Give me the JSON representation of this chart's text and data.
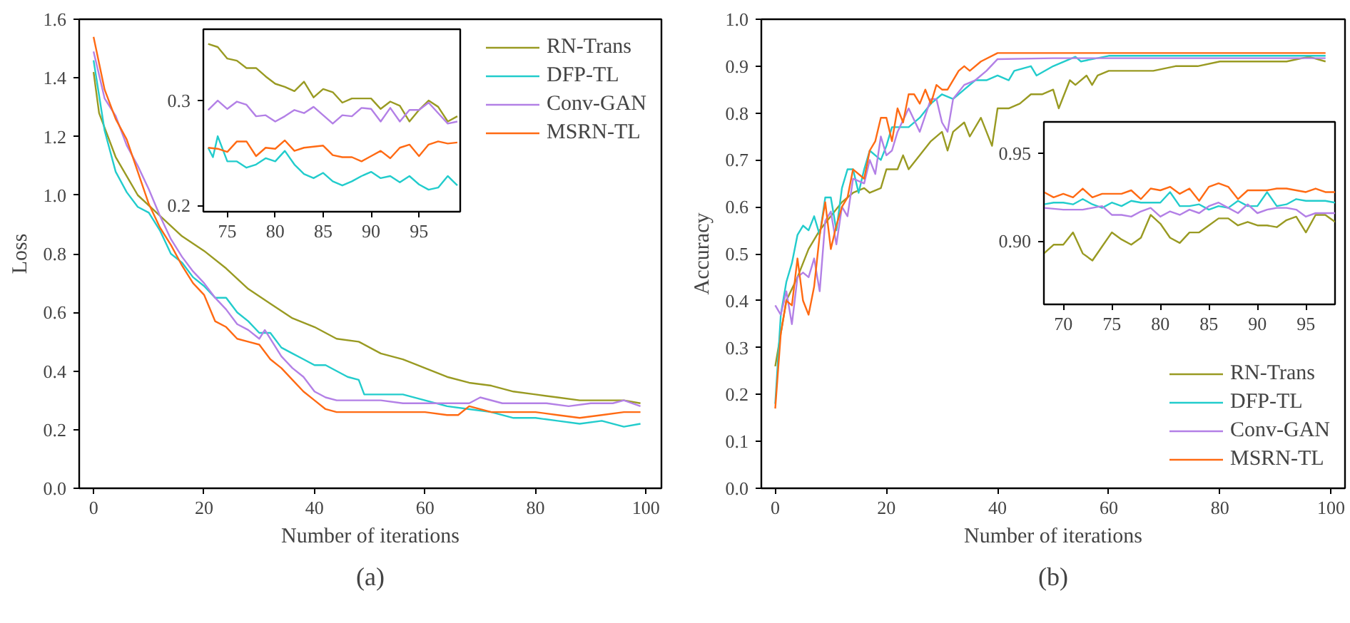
{
  "chart_data": [
    {
      "type": "line",
      "xlabel": "Number of iterations",
      "ylabel": "Loss",
      "xlim": [
        -2.6,
        102.8
      ],
      "ylim": [
        0,
        1.6
      ],
      "xticks": [
        0,
        20,
        40,
        60,
        80,
        100
      ],
      "yticks": [
        {
          "value": 0,
          "label": "0.0"
        },
        0.2,
        0.4,
        0.6,
        0.8,
        {
          "value": 1,
          "label": "1.0"
        },
        1.2,
        1.4,
        1.6
      ],
      "legend": "top right",
      "grid": false,
      "line_style": "solid",
      "annotations": [
        "(a)"
      ],
      "series": [
        {
          "name": "RN-Trans",
          "color": "#999a22",
          "x": [
            0,
            1,
            4,
            8,
            12,
            16,
            20,
            24,
            28,
            32,
            36,
            40,
            44,
            48,
            52,
            56,
            60,
            64,
            68,
            72,
            76,
            80,
            84,
            88,
            92,
            96,
            99
          ],
          "values": [
            1.42,
            1.28,
            1.13,
            1.0,
            0.93,
            0.86,
            0.81,
            0.75,
            0.68,
            0.63,
            0.58,
            0.55,
            0.51,
            0.5,
            0.46,
            0.44,
            0.41,
            0.38,
            0.36,
            0.35,
            0.33,
            0.32,
            0.31,
            0.3,
            0.3,
            0.3,
            0.29
          ]
        },
        {
          "name": "DFP-TL",
          "color": "#22cccc",
          "x": [
            0,
            2,
            4,
            6,
            8,
            10,
            12,
            14,
            16,
            18,
            20,
            22,
            24,
            26,
            28,
            30,
            32,
            34,
            36,
            38,
            40,
            42,
            44,
            46,
            48,
            49,
            52,
            56,
            60,
            64,
            68,
            72,
            76,
            80,
            84,
            88,
            92,
            96,
            99
          ],
          "values": [
            1.46,
            1.22,
            1.08,
            1.01,
            0.96,
            0.94,
            0.88,
            0.8,
            0.77,
            0.72,
            0.69,
            0.65,
            0.65,
            0.6,
            0.57,
            0.53,
            0.53,
            0.48,
            0.46,
            0.44,
            0.42,
            0.42,
            0.4,
            0.38,
            0.37,
            0.32,
            0.32,
            0.32,
            0.3,
            0.28,
            0.27,
            0.26,
            0.24,
            0.24,
            0.23,
            0.22,
            0.23,
            0.21,
            0.22
          ]
        },
        {
          "name": "Conv-GAN",
          "color": "#b380e6",
          "x": [
            0,
            2,
            4,
            6,
            8,
            10,
            12,
            14,
            16,
            18,
            20,
            22,
            24,
            26,
            28,
            30,
            31,
            34,
            36,
            38,
            40,
            42,
            44,
            48,
            52,
            56,
            60,
            64,
            68,
            70,
            74,
            78,
            82,
            86,
            90,
            94,
            96,
            99
          ],
          "values": [
            1.49,
            1.33,
            1.27,
            1.17,
            1.1,
            1.02,
            0.93,
            0.85,
            0.79,
            0.74,
            0.7,
            0.65,
            0.61,
            0.56,
            0.54,
            0.51,
            0.54,
            0.45,
            0.41,
            0.38,
            0.33,
            0.31,
            0.3,
            0.3,
            0.3,
            0.29,
            0.29,
            0.29,
            0.29,
            0.31,
            0.29,
            0.29,
            0.29,
            0.28,
            0.29,
            0.29,
            0.3,
            0.28
          ]
        },
        {
          "name": "MSRN-TL",
          "color": "#ff6a13",
          "x": [
            0,
            2,
            4,
            6,
            8,
            10,
            12,
            14,
            16,
            18,
            20,
            22,
            24,
            26,
            28,
            30,
            32,
            34,
            36,
            38,
            40,
            42,
            44,
            48,
            52,
            56,
            60,
            64,
            66,
            68,
            72,
            76,
            80,
            84,
            88,
            92,
            96,
            99
          ],
          "values": [
            1.54,
            1.36,
            1.26,
            1.19,
            1.08,
            0.97,
            0.89,
            0.83,
            0.76,
            0.7,
            0.66,
            0.57,
            0.55,
            0.51,
            0.5,
            0.49,
            0.44,
            0.41,
            0.37,
            0.33,
            0.3,
            0.27,
            0.26,
            0.26,
            0.26,
            0.26,
            0.26,
            0.25,
            0.25,
            0.28,
            0.26,
            0.26,
            0.26,
            0.25,
            0.24,
            0.25,
            0.26,
            0.26
          ]
        }
      ]
    },
    {
      "type": "line",
      "xlim": [
        72.5,
        99.3
      ],
      "ylim": [
        0.194,
        0.368
      ],
      "xticks": [
        75,
        80,
        85,
        90,
        95
      ],
      "yticks": [
        0.2,
        0.3
      ],
      "grid": false,
      "line_style": "solid",
      "series": [
        {
          "color": "#999a22",
          "x": [
            73,
            74,
            75,
            76,
            77,
            78,
            79,
            80,
            81,
            82,
            83,
            84,
            85,
            86,
            87,
            88,
            89,
            90,
            91,
            92,
            93,
            94,
            95,
            96,
            97,
            98,
            99
          ],
          "values": [
            0.354,
            0.351,
            0.34,
            0.338,
            0.331,
            0.331,
            0.323,
            0.316,
            0.313,
            0.309,
            0.318,
            0.303,
            0.311,
            0.308,
            0.298,
            0.302,
            0.302,
            0.302,
            0.292,
            0.299,
            0.295,
            0.28,
            0.291,
            0.3,
            0.294,
            0.28,
            0.285
          ]
        },
        {
          "color": "#22cccc",
          "x": [
            73,
            73.5,
            74,
            75,
            76,
            77,
            78,
            79,
            80,
            81,
            82,
            83,
            84,
            85,
            86,
            87,
            88,
            89,
            90,
            91,
            92,
            93,
            94,
            95,
            96,
            97,
            98,
            99
          ],
          "values": [
            0.255,
            0.246,
            0.266,
            0.242,
            0.242,
            0.236,
            0.239,
            0.245,
            0.242,
            0.252,
            0.239,
            0.23,
            0.226,
            0.231,
            0.223,
            0.219,
            0.223,
            0.228,
            0.232,
            0.226,
            0.228,
            0.222,
            0.228,
            0.22,
            0.215,
            0.217,
            0.228,
            0.219
          ]
        },
        {
          "color": "#b380e6",
          "x": [
            73,
            74,
            75,
            76,
            77,
            78,
            79,
            80,
            81,
            82,
            83,
            84,
            85,
            86,
            87,
            88,
            89,
            90,
            91,
            92,
            93,
            94,
            95,
            96,
            97,
            98,
            99
          ],
          "values": [
            0.291,
            0.3,
            0.292,
            0.299,
            0.296,
            0.285,
            0.286,
            0.28,
            0.285,
            0.291,
            0.288,
            0.294,
            0.286,
            0.278,
            0.286,
            0.285,
            0.293,
            0.292,
            0.28,
            0.293,
            0.28,
            0.291,
            0.291,
            0.298,
            0.288,
            0.278,
            0.28
          ]
        },
        {
          "color": "#ff6a13",
          "x": [
            73,
            74,
            75,
            76,
            77,
            78,
            79,
            80,
            81,
            82,
            83,
            84,
            85,
            86,
            87,
            88,
            89,
            90,
            91,
            92,
            93,
            94,
            95,
            96,
            97,
            98,
            99
          ],
          "values": [
            0.255,
            0.254,
            0.251,
            0.261,
            0.261,
            0.247,
            0.255,
            0.254,
            0.262,
            0.252,
            0.255,
            0.256,
            0.257,
            0.248,
            0.246,
            0.246,
            0.242,
            0.247,
            0.252,
            0.245,
            0.255,
            0.258,
            0.247,
            0.258,
            0.261,
            0.259,
            0.26
          ]
        }
      ]
    },
    {
      "type": "line",
      "xlabel": "Number of iterations",
      "ylabel": "Accuracy",
      "xlim": [
        -2.5,
        102.5
      ],
      "ylim": [
        0,
        1
      ],
      "xticks": [
        0,
        20,
        40,
        60,
        80,
        100
      ],
      "yticks": [
        {
          "value": 0,
          "label": "0.0"
        },
        0.1,
        0.2,
        0.3,
        0.4,
        0.5,
        0.6,
        0.7,
        0.8,
        0.9,
        {
          "value": 1,
          "label": "1.0"
        }
      ],
      "legend": "bottom right",
      "grid": false,
      "line_style": "solid",
      "annotations": [
        "(b)"
      ],
      "series": [
        {
          "name": "RN-Trans",
          "color": "#999a22",
          "x": [
            0,
            2,
            4,
            6,
            8,
            10,
            12,
            14,
            16,
            17,
            19,
            20,
            22,
            23,
            24,
            26,
            28,
            30,
            31,
            32,
            34,
            35,
            37,
            39,
            40,
            42,
            44,
            46,
            48,
            50,
            51,
            53,
            54,
            56,
            57,
            58,
            60,
            64,
            68,
            72,
            76,
            80,
            84,
            88,
            92,
            96,
            99
          ],
          "values": [
            0.26,
            0.4,
            0.45,
            0.51,
            0.55,
            0.58,
            0.61,
            0.63,
            0.64,
            0.63,
            0.64,
            0.68,
            0.68,
            0.71,
            0.68,
            0.71,
            0.74,
            0.76,
            0.72,
            0.76,
            0.78,
            0.75,
            0.79,
            0.73,
            0.81,
            0.81,
            0.82,
            0.84,
            0.84,
            0.85,
            0.81,
            0.87,
            0.86,
            0.88,
            0.86,
            0.88,
            0.89,
            0.89,
            0.89,
            0.9,
            0.9,
            0.91,
            0.91,
            0.91,
            0.91,
            0.92,
            0.91
          ]
        },
        {
          "name": "DFP-TL",
          "color": "#22cccc",
          "x": [
            0,
            1,
            2,
            3,
            4,
            5,
            6,
            7,
            8,
            9,
            10,
            11,
            12,
            13,
            14,
            15,
            16,
            17,
            18,
            19,
            20,
            21,
            22,
            24,
            26,
            28,
            30,
            32,
            34,
            36,
            38,
            40,
            42,
            43,
            46,
            47,
            50,
            54,
            55,
            60,
            70,
            80,
            90,
            99
          ],
          "values": [
            0.18,
            0.37,
            0.44,
            0.48,
            0.54,
            0.56,
            0.55,
            0.58,
            0.54,
            0.62,
            0.62,
            0.55,
            0.64,
            0.68,
            0.68,
            0.63,
            0.68,
            0.72,
            0.71,
            0.7,
            0.73,
            0.77,
            0.77,
            0.77,
            0.79,
            0.82,
            0.84,
            0.83,
            0.85,
            0.87,
            0.87,
            0.88,
            0.87,
            0.89,
            0.9,
            0.88,
            0.9,
            0.92,
            0.91,
            0.922,
            0.922,
            0.922,
            0.922,
            0.922
          ]
        },
        {
          "name": "Conv-GAN",
          "color": "#b380e6",
          "x": [
            0,
            1,
            2,
            3,
            4,
            5,
            6,
            7,
            8,
            9,
            10,
            11,
            12,
            13,
            14,
            16,
            17,
            18,
            19,
            20,
            21,
            22,
            24,
            26,
            28,
            29,
            30,
            31,
            32,
            34,
            36,
            38,
            40,
            50,
            60,
            70,
            80,
            90,
            99
          ],
          "values": [
            0.39,
            0.37,
            0.42,
            0.35,
            0.45,
            0.46,
            0.45,
            0.49,
            0.42,
            0.57,
            0.59,
            0.52,
            0.6,
            0.58,
            0.66,
            0.65,
            0.7,
            0.67,
            0.75,
            0.71,
            0.72,
            0.76,
            0.81,
            0.76,
            0.83,
            0.83,
            0.78,
            0.76,
            0.83,
            0.86,
            0.87,
            0.89,
            0.915,
            0.917,
            0.917,
            0.917,
            0.917,
            0.917,
            0.917
          ]
        },
        {
          "name": "MSRN-TL",
          "color": "#ff6a13",
          "x": [
            0,
            1,
            2,
            3,
            4,
            5,
            6,
            7,
            8,
            9,
            10,
            11,
            12,
            13,
            14,
            16,
            17,
            18,
            19,
            20,
            21,
            22,
            23,
            24,
            25,
            26,
            27,
            28,
            29,
            30,
            31,
            33,
            34,
            35,
            37,
            40,
            50,
            60,
            70,
            80,
            90,
            99
          ],
          "values": [
            0.17,
            0.33,
            0.4,
            0.39,
            0.49,
            0.4,
            0.37,
            0.43,
            0.54,
            0.61,
            0.51,
            0.56,
            0.6,
            0.62,
            0.68,
            0.66,
            0.72,
            0.74,
            0.79,
            0.79,
            0.74,
            0.81,
            0.78,
            0.84,
            0.84,
            0.82,
            0.85,
            0.82,
            0.86,
            0.85,
            0.85,
            0.89,
            0.9,
            0.89,
            0.91,
            0.928,
            0.928,
            0.928,
            0.928,
            0.928,
            0.928,
            0.928
          ]
        }
      ]
    },
    {
      "type": "line",
      "xlim": [
        68,
        98
      ],
      "ylim": [
        0.864,
        0.968
      ],
      "xticks": [
        70,
        75,
        80,
        85,
        90,
        95
      ],
      "yticks": [
        {
          "value": 0.9,
          "label": "0.90"
        },
        0.95
      ],
      "grid": false,
      "line_style": "solid",
      "series": [
        {
          "color": "#999a22",
          "x": [
            68,
            69,
            70,
            71,
            72,
            73,
            74,
            75,
            76,
            77,
            78,
            79,
            80,
            81,
            82,
            83,
            84,
            85,
            86,
            87,
            88,
            89,
            90,
            91,
            92,
            93,
            94,
            95,
            96,
            97,
            98
          ],
          "values": [
            0.893,
            0.898,
            0.898,
            0.905,
            0.893,
            0.889,
            0.897,
            0.905,
            0.901,
            0.898,
            0.902,
            0.915,
            0.91,
            0.902,
            0.899,
            0.905,
            0.905,
            0.909,
            0.913,
            0.913,
            0.909,
            0.911,
            0.909,
            0.909,
            0.908,
            0.912,
            0.914,
            0.905,
            0.915,
            0.915,
            0.911
          ]
        },
        {
          "color": "#22cccc",
          "x": [
            68,
            69,
            70,
            71,
            72,
            73,
            74,
            75,
            76,
            77,
            78,
            79,
            80,
            81,
            82,
            83,
            84,
            85,
            86,
            87,
            88,
            89,
            90,
            91,
            92,
            93,
            94,
            95,
            96,
            97,
            98
          ],
          "values": [
            0.921,
            0.922,
            0.922,
            0.921,
            0.924,
            0.921,
            0.919,
            0.922,
            0.92,
            0.923,
            0.922,
            0.922,
            0.922,
            0.928,
            0.92,
            0.92,
            0.921,
            0.918,
            0.92,
            0.919,
            0.923,
            0.92,
            0.92,
            0.928,
            0.92,
            0.921,
            0.924,
            0.923,
            0.923,
            0.923,
            0.922
          ]
        },
        {
          "color": "#b380e6",
          "x": [
            68,
            70,
            72,
            73,
            74,
            75,
            76,
            77,
            78,
            79,
            80,
            81,
            82,
            83,
            84,
            85,
            86,
            87,
            88,
            89,
            90,
            91,
            92,
            93,
            94,
            95,
            96,
            97,
            98
          ],
          "values": [
            0.919,
            0.918,
            0.918,
            0.919,
            0.92,
            0.915,
            0.915,
            0.914,
            0.917,
            0.919,
            0.914,
            0.917,
            0.915,
            0.918,
            0.916,
            0.92,
            0.922,
            0.919,
            0.916,
            0.921,
            0.916,
            0.918,
            0.919,
            0.919,
            0.918,
            0.914,
            0.916,
            0.916,
            0.916
          ]
        },
        {
          "color": "#ff6a13",
          "x": [
            68,
            69,
            70,
            71,
            72,
            73,
            74,
            75,
            76,
            77,
            78,
            79,
            80,
            81,
            82,
            83,
            84,
            85,
            86,
            87,
            88,
            89,
            90,
            91,
            92,
            93,
            94,
            95,
            96,
            97,
            98
          ],
          "values": [
            0.928,
            0.925,
            0.927,
            0.925,
            0.93,
            0.925,
            0.927,
            0.927,
            0.927,
            0.929,
            0.924,
            0.93,
            0.929,
            0.931,
            0.927,
            0.93,
            0.923,
            0.931,
            0.933,
            0.931,
            0.924,
            0.929,
            0.929,
            0.929,
            0.93,
            0.93,
            0.929,
            0.928,
            0.93,
            0.928,
            0.928
          ]
        }
      ]
    }
  ]
}
